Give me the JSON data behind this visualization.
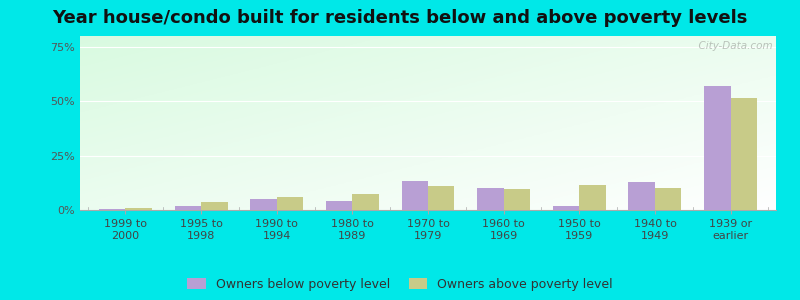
{
  "title": "Year house/condo built for residents below and above poverty levels",
  "categories": [
    "1999 to\n2000",
    "1995 to\n1998",
    "1990 to\n1994",
    "1980 to\n1989",
    "1970 to\n1979",
    "1960 to\n1969",
    "1950 to\n1959",
    "1940 to\n1949",
    "1939 or\nearlier"
  ],
  "below_poverty": [
    0.4,
    2.0,
    5.0,
    4.0,
    13.5,
    10.0,
    2.0,
    13.0,
    57.0
  ],
  "above_poverty": [
    0.8,
    3.5,
    6.0,
    7.5,
    11.0,
    9.5,
    11.5,
    10.0,
    51.5
  ],
  "below_color": "#b89fd4",
  "above_color": "#c8cb88",
  "outer_background": "#00e8e8",
  "yticks": [
    0,
    25,
    50,
    75
  ],
  "ylim": [
    0,
    80
  ],
  "bar_width": 0.35,
  "legend_below_label": "Owners below poverty level",
  "legend_above_label": "Owners above poverty level",
  "title_fontsize": 13,
  "tick_fontsize": 8,
  "legend_fontsize": 9
}
